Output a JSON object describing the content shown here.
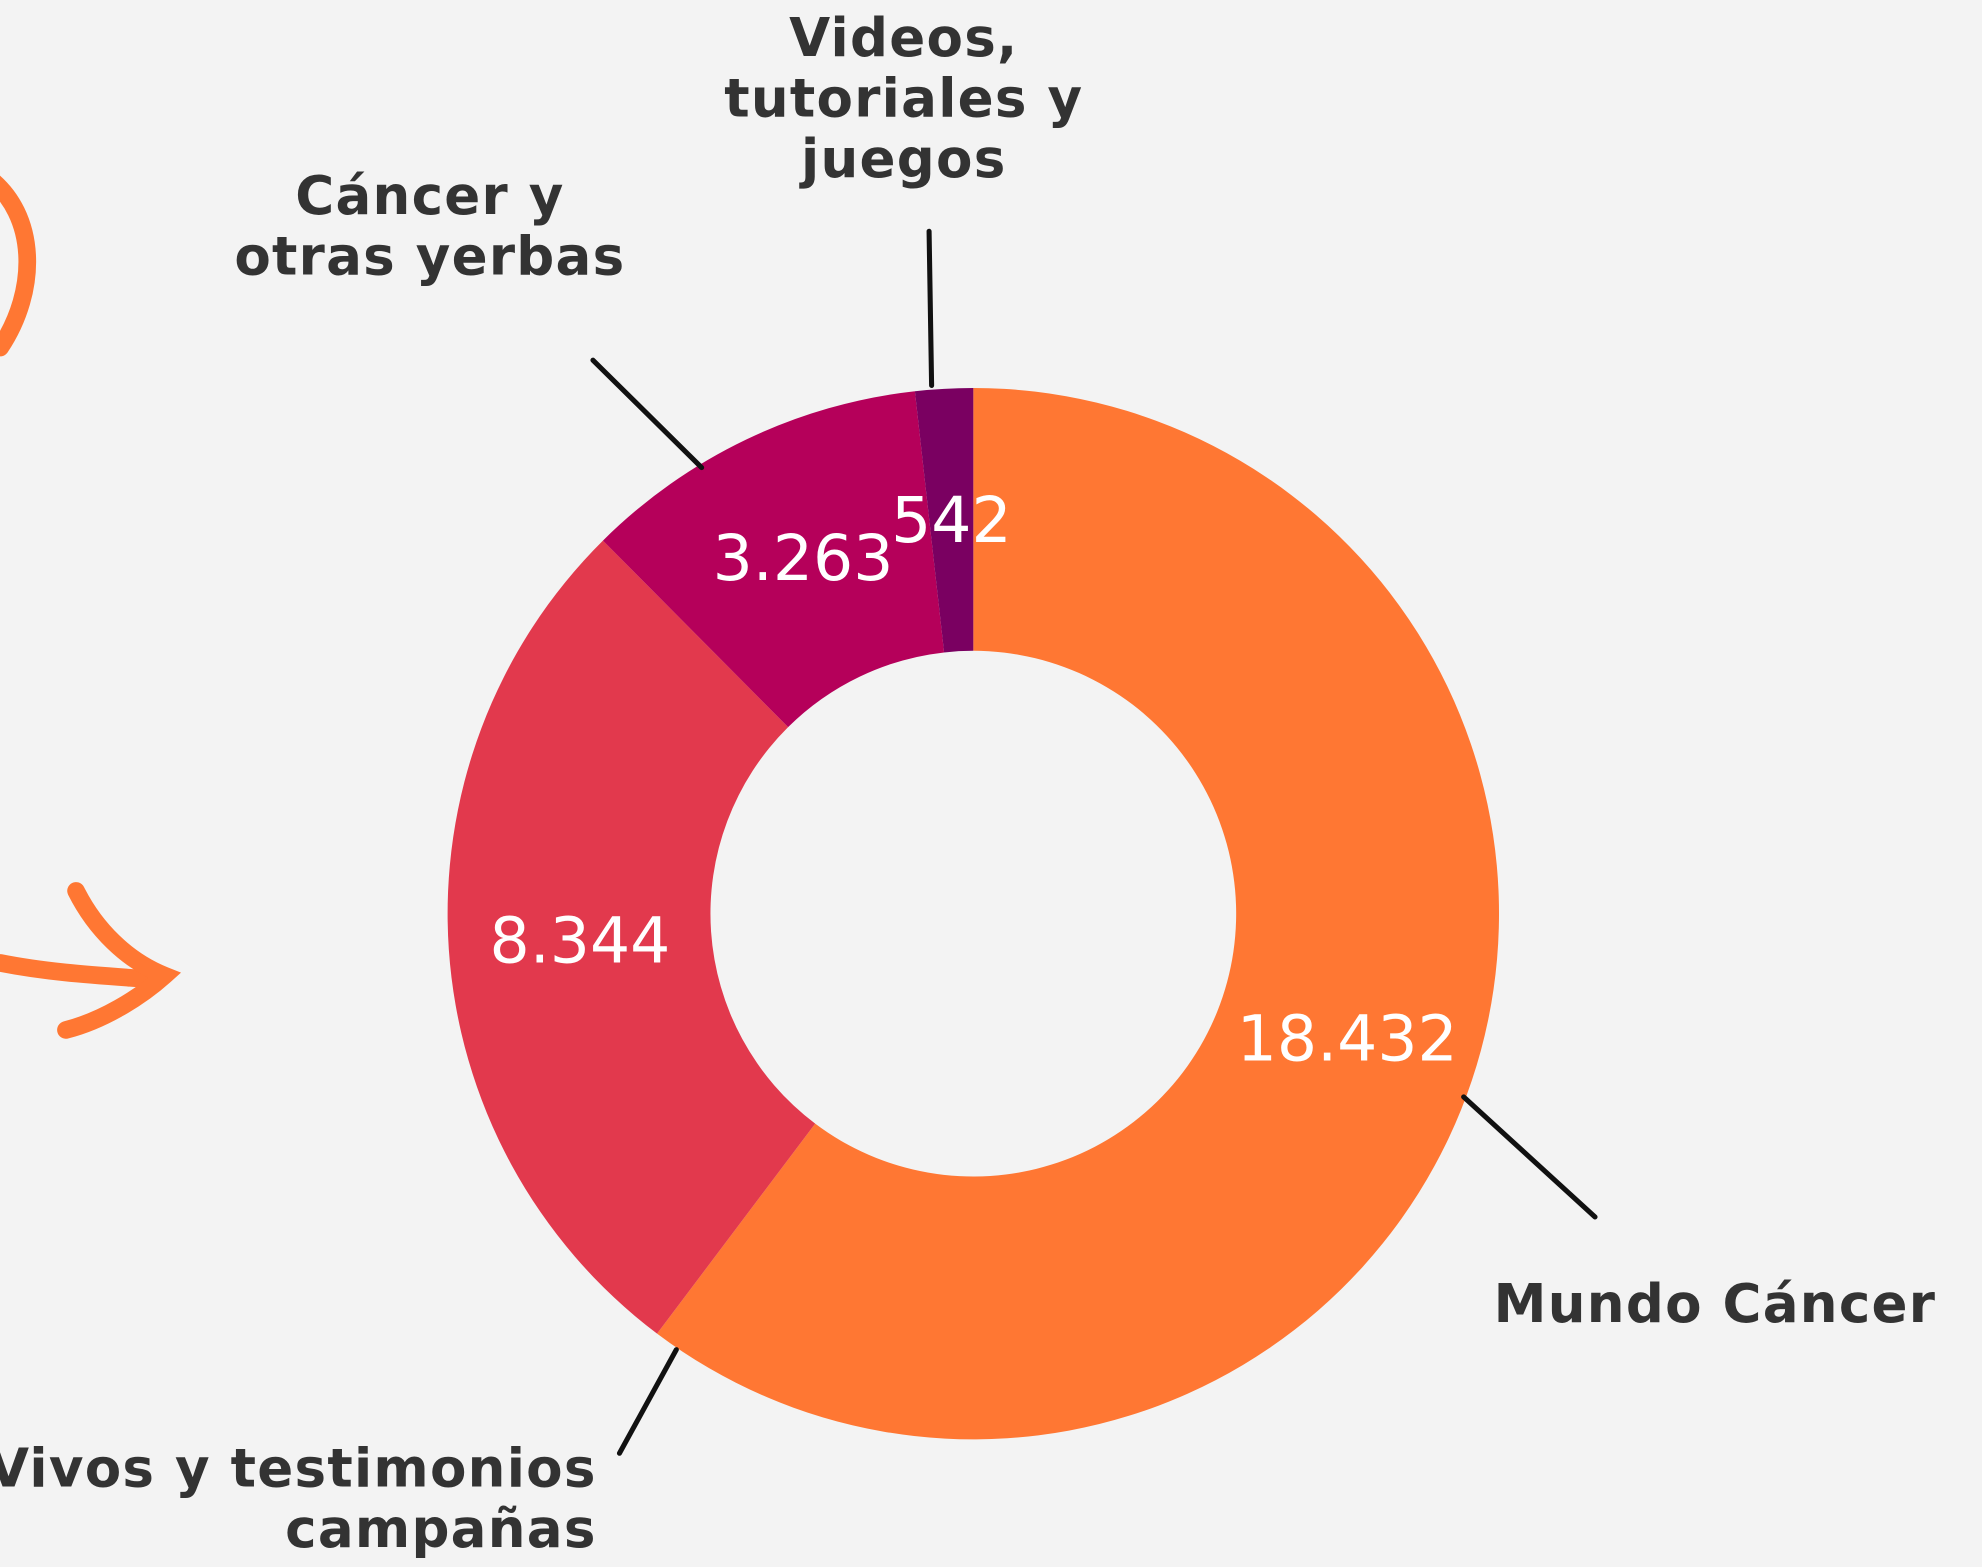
{
  "chart_data": {
    "type": "donut",
    "categories": [
      "Mundo Cáncer",
      "Vivos y testimonios\ncampañas",
      "Cáncer y\notras yerbas",
      "Videos,\ntutoriales y\njuegos"
    ],
    "values": [
      18432,
      8344,
      3263,
      542
    ],
    "value_labels": [
      "18.432",
      "8.344",
      "3.263",
      "542"
    ],
    "colors": [
      "#ff7733",
      "#e2394d",
      "#b5005a",
      "#7a0061"
    ]
  }
}
